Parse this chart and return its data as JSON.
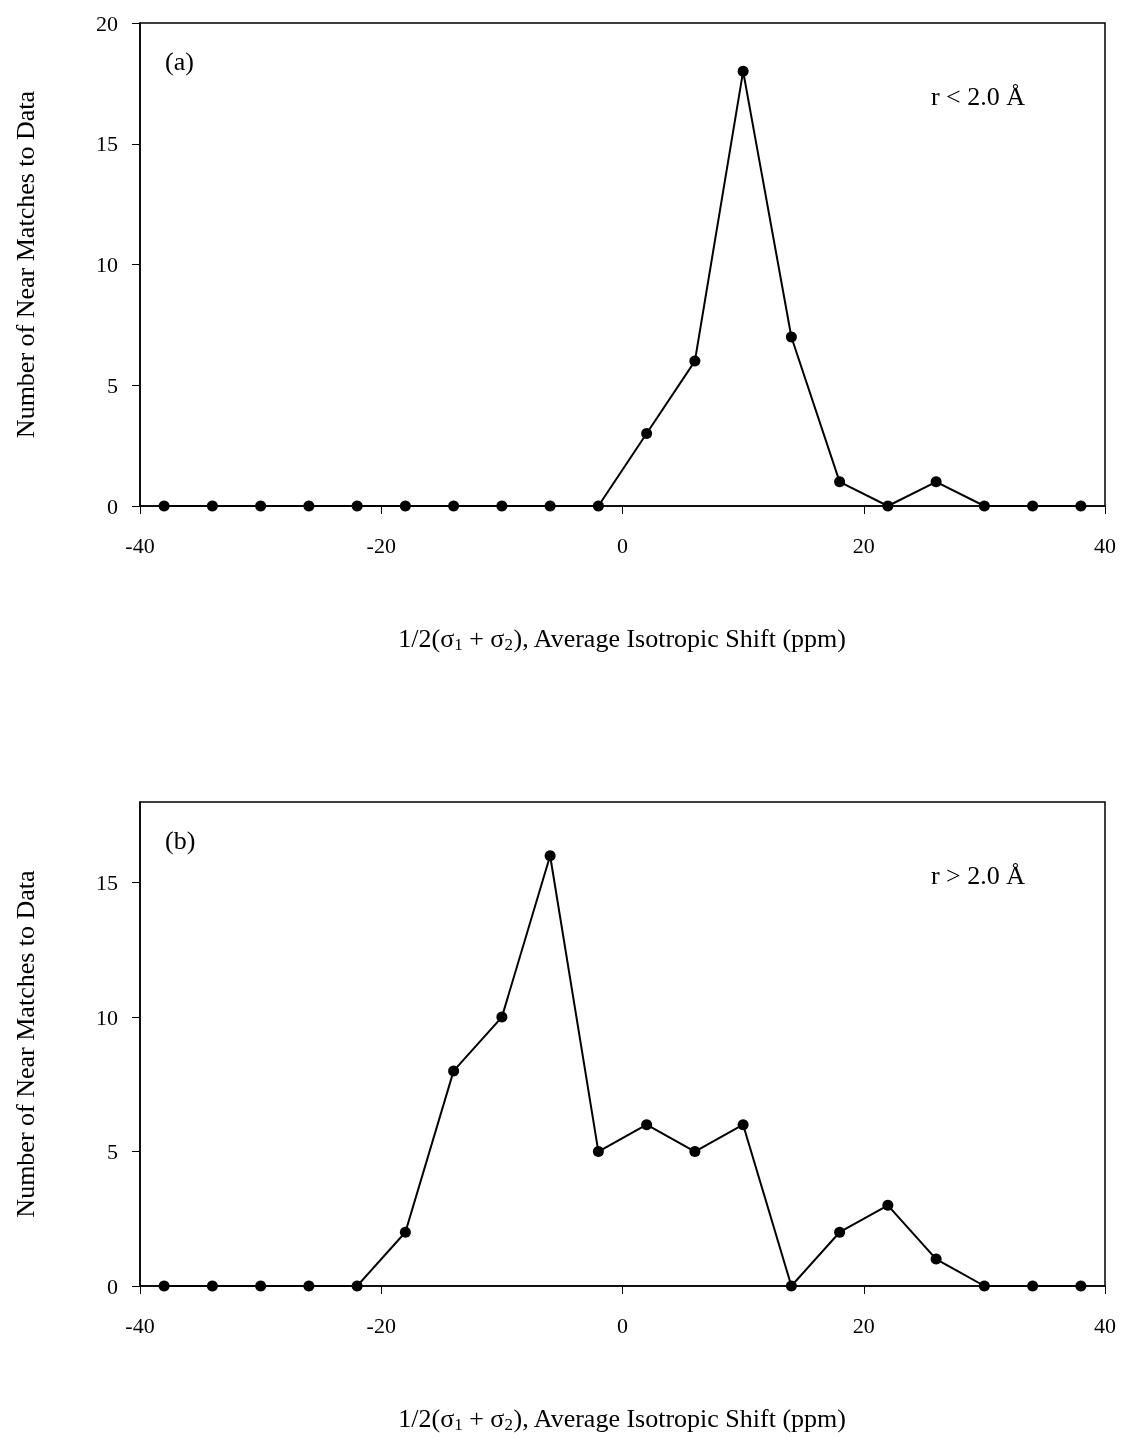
{
  "chart_data": [
    {
      "type": "line",
      "xlabel": "1/2(σ$_{1}$ + σ$_{2}$), Average Isotropic Shift (ppm)",
      "ylabel": "Number of Near Matches to Data",
      "annotations": [
        "(a)",
        "r < 2.0 Å"
      ],
      "x": [
        -38,
        -34,
        -30,
        -26,
        -22,
        -18,
        -14,
        -10,
        -6,
        -2,
        2,
        6,
        10,
        14,
        18,
        22,
        26,
        30,
        34,
        38
      ],
      "series": [
        {
          "color": "#000000",
          "values": [
            0,
            0,
            0,
            0,
            0,
            0,
            0,
            0,
            0,
            0,
            3,
            6,
            18,
            7,
            1,
            0,
            1,
            0,
            0,
            0
          ]
        }
      ],
      "xlim": [
        -40,
        40
      ],
      "xticks": [
        -40,
        -20,
        0,
        20,
        40
      ],
      "ylim": [
        0,
        20
      ],
      "yticks": [
        0,
        5,
        10,
        15,
        20
      ],
      "grid": false,
      "marker": "circle",
      "line_style": "solid"
    },
    {
      "type": "line",
      "xlabel": "1/2(σ$_{1}$ + σ$_{2}$), Average Isotropic Shift (ppm)",
      "ylabel": "Number of Near Matches to Data",
      "annotations": [
        "(b)",
        "r > 2.0 Å"
      ],
      "x": [
        -38,
        -34,
        -30,
        -26,
        -22,
        -18,
        -14,
        -10,
        -6,
        -2,
        2,
        6,
        10,
        14,
        18,
        22,
        26,
        30,
        34,
        38
      ],
      "series": [
        {
          "color": "#000000",
          "values": [
            0,
            0,
            0,
            0,
            0,
            2,
            8,
            10,
            16,
            5,
            6,
            5,
            6,
            0,
            2,
            3,
            1,
            0,
            0,
            0
          ]
        }
      ],
      "xlim": [
        -40,
        40
      ],
      "xticks": [
        -40,
        -20,
        0,
        20,
        40
      ],
      "ylim": [
        0,
        18
      ],
      "yticks": [
        0,
        5,
        10,
        15
      ],
      "grid": false,
      "marker": "circle",
      "line_style": "solid"
    }
  ]
}
